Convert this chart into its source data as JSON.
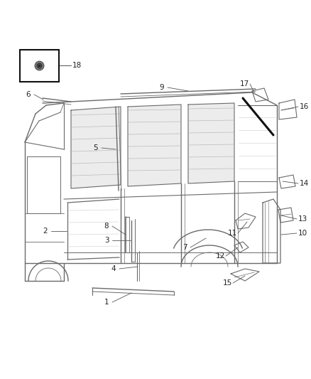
{
  "bg_color": "#ffffff",
  "lc": "#6a6a6a",
  "dc": "#1a1a1a",
  "figsize": [
    4.38,
    5.33
  ],
  "dpi": 100
}
